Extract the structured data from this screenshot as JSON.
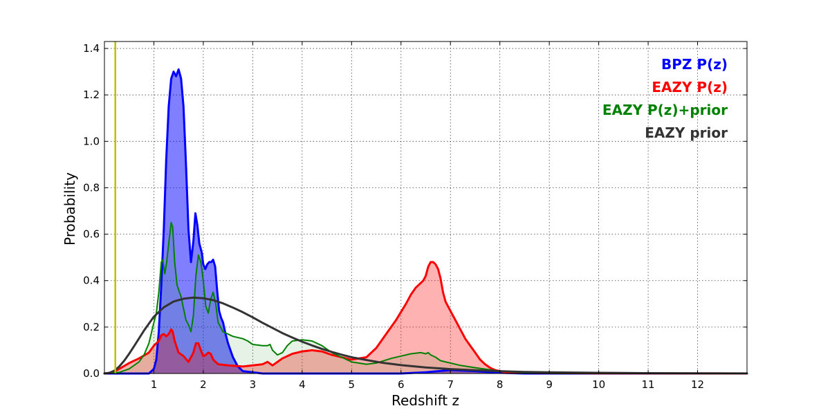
{
  "chart_data": {
    "type": "area",
    "xlabel": "Redshift z",
    "ylabel": "Probability",
    "xlim": [
      0,
      13
    ],
    "ylim": [
      0,
      1.43
    ],
    "xticks": [
      1,
      2,
      3,
      4,
      5,
      6,
      7,
      8,
      9,
      10,
      11,
      12
    ],
    "yticks": [
      0.0,
      0.2,
      0.4,
      0.6,
      0.8,
      1.0,
      1.2,
      1.4
    ],
    "xtick_labels": [
      "1",
      "2",
      "3",
      "4",
      "5",
      "6",
      "7",
      "8",
      "9",
      "10",
      "11",
      "12"
    ],
    "ytick_labels": [
      "0.0",
      "0.2",
      "0.4",
      "0.6",
      "0.8",
      "1.0",
      "1.2",
      "1.4"
    ],
    "grid": true,
    "legend_position": "top-right",
    "vertical_line": {
      "x": 0.22,
      "color": "#bfbf00"
    },
    "series": [
      {
        "name": "BPZ P(z)",
        "color": "#0000ff",
        "fill": true,
        "fill_opacity": 0.5,
        "line_width": 3,
        "points": [
          [
            0,
            0
          ],
          [
            0.9,
            0
          ],
          [
            1.0,
            0.02
          ],
          [
            1.05,
            0.06
          ],
          [
            1.1,
            0.18
          ],
          [
            1.15,
            0.38
          ],
          [
            1.2,
            0.62
          ],
          [
            1.25,
            0.92
          ],
          [
            1.3,
            1.15
          ],
          [
            1.35,
            1.27
          ],
          [
            1.4,
            1.3
          ],
          [
            1.45,
            1.28
          ],
          [
            1.5,
            1.31
          ],
          [
            1.55,
            1.27
          ],
          [
            1.6,
            1.15
          ],
          [
            1.65,
            0.9
          ],
          [
            1.7,
            0.62
          ],
          [
            1.75,
            0.48
          ],
          [
            1.8,
            0.57
          ],
          [
            1.84,
            0.69
          ],
          [
            1.88,
            0.64
          ],
          [
            1.92,
            0.56
          ],
          [
            1.97,
            0.52
          ],
          [
            2.0,
            0.47
          ],
          [
            2.04,
            0.45
          ],
          [
            2.08,
            0.47
          ],
          [
            2.12,
            0.48
          ],
          [
            2.16,
            0.48
          ],
          [
            2.2,
            0.49
          ],
          [
            2.24,
            0.46
          ],
          [
            2.28,
            0.36
          ],
          [
            2.32,
            0.27
          ],
          [
            2.36,
            0.24
          ],
          [
            2.4,
            0.22
          ],
          [
            2.45,
            0.17
          ],
          [
            2.5,
            0.13
          ],
          [
            2.55,
            0.1
          ],
          [
            2.6,
            0.07
          ],
          [
            2.7,
            0.03
          ],
          [
            2.8,
            0.01
          ],
          [
            3.0,
            0.005
          ],
          [
            3.2,
            0
          ],
          [
            6.0,
            0
          ],
          [
            6.5,
            0.005
          ],
          [
            7.0,
            0.015
          ],
          [
            7.5,
            0.01
          ],
          [
            8.0,
            0.003
          ],
          [
            8.5,
            0
          ],
          [
            12,
            0
          ],
          [
            13,
            0
          ]
        ]
      },
      {
        "name": "EAZY P(z)",
        "color": "#ff0000",
        "fill": true,
        "fill_opacity": 0.3,
        "line_width": 3,
        "points": [
          [
            0,
            0
          ],
          [
            0.1,
            0.002
          ],
          [
            0.2,
            0.008
          ],
          [
            0.3,
            0.02
          ],
          [
            0.5,
            0.045
          ],
          [
            0.7,
            0.065
          ],
          [
            0.9,
            0.09
          ],
          [
            1.0,
            0.12
          ],
          [
            1.1,
            0.14
          ],
          [
            1.15,
            0.165
          ],
          [
            1.2,
            0.17
          ],
          [
            1.25,
            0.16
          ],
          [
            1.3,
            0.17
          ],
          [
            1.35,
            0.19
          ],
          [
            1.38,
            0.18
          ],
          [
            1.42,
            0.14
          ],
          [
            1.5,
            0.09
          ],
          [
            1.6,
            0.075
          ],
          [
            1.7,
            0.05
          ],
          [
            1.8,
            0.09
          ],
          [
            1.85,
            0.13
          ],
          [
            1.9,
            0.13
          ],
          [
            1.95,
            0.1
          ],
          [
            2.0,
            0.075
          ],
          [
            2.05,
            0.08
          ],
          [
            2.1,
            0.09
          ],
          [
            2.15,
            0.085
          ],
          [
            2.2,
            0.06
          ],
          [
            2.3,
            0.04
          ],
          [
            2.5,
            0.035
          ],
          [
            2.8,
            0.03
          ],
          [
            3.0,
            0.035
          ],
          [
            3.2,
            0.04
          ],
          [
            3.3,
            0.05
          ],
          [
            3.4,
            0.035
          ],
          [
            3.6,
            0.065
          ],
          [
            3.8,
            0.085
          ],
          [
            4.0,
            0.095
          ],
          [
            4.2,
            0.1
          ],
          [
            4.4,
            0.095
          ],
          [
            4.6,
            0.08
          ],
          [
            4.8,
            0.07
          ],
          [
            5.0,
            0.06
          ],
          [
            5.3,
            0.07
          ],
          [
            5.5,
            0.11
          ],
          [
            5.7,
            0.17
          ],
          [
            5.9,
            0.23
          ],
          [
            6.1,
            0.3
          ],
          [
            6.2,
            0.34
          ],
          [
            6.3,
            0.37
          ],
          [
            6.4,
            0.39
          ],
          [
            6.45,
            0.4
          ],
          [
            6.5,
            0.42
          ],
          [
            6.55,
            0.46
          ],
          [
            6.6,
            0.48
          ],
          [
            6.65,
            0.48
          ],
          [
            6.7,
            0.47
          ],
          [
            6.75,
            0.45
          ],
          [
            6.8,
            0.41
          ],
          [
            6.85,
            0.35
          ],
          [
            6.9,
            0.31
          ],
          [
            7.0,
            0.27
          ],
          [
            7.1,
            0.23
          ],
          [
            7.2,
            0.19
          ],
          [
            7.3,
            0.15
          ],
          [
            7.4,
            0.12
          ],
          [
            7.5,
            0.09
          ],
          [
            7.6,
            0.06
          ],
          [
            7.7,
            0.04
          ],
          [
            7.8,
            0.025
          ],
          [
            7.9,
            0.015
          ],
          [
            8.1,
            0.006
          ],
          [
            8.5,
            0.003
          ],
          [
            9,
            0.002
          ],
          [
            10,
            0.001
          ],
          [
            13,
            0
          ]
        ]
      },
      {
        "name": "EAZY P(z)+prior",
        "color": "#008000",
        "fill": true,
        "fill_opacity": 0.1,
        "line_width": 2,
        "points": [
          [
            0,
            0
          ],
          [
            0.3,
            0.005
          ],
          [
            0.5,
            0.02
          ],
          [
            0.7,
            0.05
          ],
          [
            0.8,
            0.08
          ],
          [
            0.9,
            0.13
          ],
          [
            1.0,
            0.22
          ],
          [
            1.05,
            0.26
          ],
          [
            1.1,
            0.35
          ],
          [
            1.15,
            0.48
          ],
          [
            1.18,
            0.49
          ],
          [
            1.22,
            0.43
          ],
          [
            1.26,
            0.48
          ],
          [
            1.3,
            0.56
          ],
          [
            1.35,
            0.65
          ],
          [
            1.38,
            0.63
          ],
          [
            1.42,
            0.48
          ],
          [
            1.47,
            0.38
          ],
          [
            1.55,
            0.33
          ],
          [
            1.6,
            0.28
          ],
          [
            1.65,
            0.23
          ],
          [
            1.7,
            0.21
          ],
          [
            1.75,
            0.18
          ],
          [
            1.8,
            0.25
          ],
          [
            1.85,
            0.42
          ],
          [
            1.9,
            0.51
          ],
          [
            1.95,
            0.48
          ],
          [
            2.0,
            0.4
          ],
          [
            2.05,
            0.29
          ],
          [
            2.1,
            0.26
          ],
          [
            2.15,
            0.32
          ],
          [
            2.2,
            0.35
          ],
          [
            2.25,
            0.3
          ],
          [
            2.3,
            0.22
          ],
          [
            2.4,
            0.18
          ],
          [
            2.6,
            0.16
          ],
          [
            2.8,
            0.15
          ],
          [
            2.9,
            0.14
          ],
          [
            3.0,
            0.125
          ],
          [
            3.2,
            0.12
          ],
          [
            3.3,
            0.12
          ],
          [
            3.35,
            0.125
          ],
          [
            3.4,
            0.1
          ],
          [
            3.5,
            0.08
          ],
          [
            3.6,
            0.09
          ],
          [
            3.7,
            0.12
          ],
          [
            3.8,
            0.14
          ],
          [
            4.0,
            0.145
          ],
          [
            4.2,
            0.14
          ],
          [
            4.4,
            0.12
          ],
          [
            4.6,
            0.09
          ],
          [
            4.8,
            0.07
          ],
          [
            5.0,
            0.05
          ],
          [
            5.3,
            0.04
          ],
          [
            5.5,
            0.045
          ],
          [
            5.8,
            0.065
          ],
          [
            6.0,
            0.075
          ],
          [
            6.2,
            0.085
          ],
          [
            6.4,
            0.09
          ],
          [
            6.5,
            0.085
          ],
          [
            6.55,
            0.09
          ],
          [
            6.6,
            0.08
          ],
          [
            6.7,
            0.07
          ],
          [
            6.8,
            0.055
          ],
          [
            7.0,
            0.045
          ],
          [
            7.2,
            0.035
          ],
          [
            7.5,
            0.025
          ],
          [
            8.0,
            0.01
          ],
          [
            8.5,
            0.004
          ],
          [
            9,
            0.001
          ],
          [
            13,
            0
          ]
        ]
      },
      {
        "name": "EAZY prior",
        "color": "#333333",
        "fill": false,
        "line_width": 3,
        "points": [
          [
            0,
            0
          ],
          [
            0.1,
            0.003
          ],
          [
            0.2,
            0.012
          ],
          [
            0.3,
            0.03
          ],
          [
            0.4,
            0.055
          ],
          [
            0.5,
            0.085
          ],
          [
            0.6,
            0.118
          ],
          [
            0.8,
            0.185
          ],
          [
            1.0,
            0.245
          ],
          [
            1.2,
            0.285
          ],
          [
            1.4,
            0.31
          ],
          [
            1.6,
            0.322
          ],
          [
            1.8,
            0.327
          ],
          [
            2.0,
            0.324
          ],
          [
            2.2,
            0.316
          ],
          [
            2.4,
            0.302
          ],
          [
            2.6,
            0.284
          ],
          [
            2.8,
            0.264
          ],
          [
            3.0,
            0.242
          ],
          [
            3.2,
            0.218
          ],
          [
            3.4,
            0.196
          ],
          [
            3.6,
            0.174
          ],
          [
            3.8,
            0.155
          ],
          [
            4.0,
            0.137
          ],
          [
            4.2,
            0.121
          ],
          [
            4.4,
            0.106
          ],
          [
            4.6,
            0.093
          ],
          [
            4.8,
            0.081
          ],
          [
            5.0,
            0.07
          ],
          [
            5.3,
            0.058
          ],
          [
            5.6,
            0.047
          ],
          [
            6.0,
            0.036
          ],
          [
            6.5,
            0.026
          ],
          [
            7.0,
            0.019
          ],
          [
            7.5,
            0.014
          ],
          [
            8.0,
            0.01
          ],
          [
            8.5,
            0.007
          ],
          [
            9.0,
            0.005
          ],
          [
            10.0,
            0.003
          ],
          [
            11.0,
            0.0015
          ],
          [
            12.0,
            0.0008
          ],
          [
            13.0,
            0.0004
          ]
        ]
      }
    ]
  }
}
